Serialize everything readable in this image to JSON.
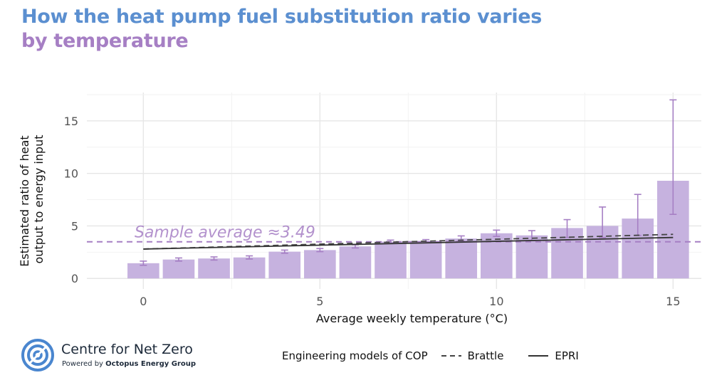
{
  "title": {
    "line1": "How the heat pump fuel substitution ratio varies",
    "line2": "by temperature",
    "color1": "#5b8fd0",
    "color2": "#a67fc4"
  },
  "chart_data": {
    "type": "bar",
    "xlabel": "Average weekly temperature (°C)",
    "ylabel_lines": [
      "Estimated ratio of heat",
      "output to energy input"
    ],
    "x_ticks": [
      0,
      5,
      10,
      15
    ],
    "y_ticks": [
      0,
      5,
      10,
      15
    ],
    "xlim": [
      -1.6,
      15.8
    ],
    "ylim": [
      -1.0,
      17.7
    ],
    "grid": true,
    "bar_color": "#c6b2df",
    "error_color": "#a67fc4",
    "x": [
      0,
      1,
      2,
      3,
      4,
      5,
      6,
      7,
      8,
      9,
      10,
      11,
      12,
      13,
      14,
      15
    ],
    "values": [
      1.45,
      1.8,
      1.9,
      2.0,
      2.55,
      2.7,
      3.05,
      3.5,
      3.55,
      3.8,
      4.3,
      4.1,
      4.8,
      5.0,
      5.7,
      9.3
    ],
    "error_low": [
      1.25,
      1.65,
      1.75,
      1.85,
      2.4,
      2.55,
      2.9,
      3.35,
      3.4,
      3.55,
      4.0,
      3.6,
      3.9,
      3.9,
      4.1,
      6.1
    ],
    "error_high": [
      1.65,
      1.95,
      2.05,
      2.15,
      2.7,
      2.85,
      3.2,
      3.65,
      3.7,
      4.05,
      4.6,
      4.55,
      5.6,
      6.8,
      8.0,
      17.0
    ],
    "sample_average": 3.49,
    "sample_average_label": "Sample average ≈3.49",
    "lines": [
      {
        "name": "Brattle",
        "style": "dashed",
        "x": [
          0,
          15
        ],
        "y": [
          2.8,
          4.2
        ],
        "color": "#444444"
      },
      {
        "name": "EPRI",
        "style": "solid",
        "x": [
          0,
          15
        ],
        "y": [
          2.8,
          3.9
        ],
        "color": "#333333"
      }
    ],
    "legend": {
      "title": "Engineering models of COP",
      "position": "bottom",
      "items": [
        {
          "name": "Brattle",
          "style": "dashed"
        },
        {
          "name": "EPRI",
          "style": "solid"
        }
      ]
    }
  },
  "footer": {
    "org_name": "Centre for Net Zero",
    "powered_prefix": "Powered by ",
    "powered_org": "Octopus Energy Group",
    "logo_color": "#4a86cf"
  }
}
